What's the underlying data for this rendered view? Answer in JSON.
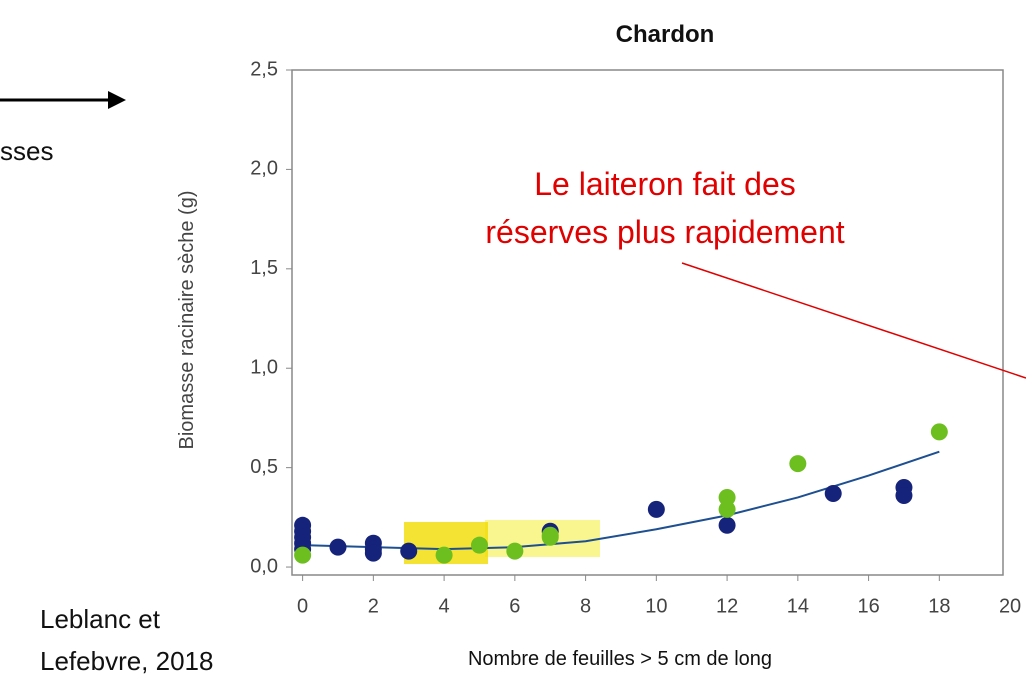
{
  "chart_data": {
    "type": "scatter",
    "title": "Chardon",
    "xlabel": "Nombre de feuilles > 5 cm de long",
    "ylabel": "Biomasse racinaire sèche (g)",
    "annotations": [
      "Le laiteron fait des",
      "réserves plus rapidement"
    ],
    "source": [
      "Leblanc et",
      "Lefebvre, 2018"
    ],
    "side_text": "sses",
    "xlim": [
      -0.3,
      19.8
    ],
    "ylim": [
      -0.04,
      2.5
    ],
    "xticks": [
      0,
      2,
      4,
      6,
      8,
      10,
      12,
      14,
      16,
      18,
      20
    ],
    "yticks": [
      {
        "value": 0,
        "label": "0,0"
      },
      {
        "value": 0.5,
        "label": "0,5"
      },
      {
        "value": 1,
        "label": "1,0"
      },
      {
        "value": 1.5,
        "label": "1,5"
      },
      {
        "value": 2,
        "label": "2,0"
      },
      {
        "value": 2.5,
        "label": "2,5"
      }
    ],
    "series": [
      {
        "color": "#16237a",
        "x": [
          0,
          0,
          0,
          0,
          0,
          1,
          2,
          2,
          2,
          3,
          7,
          10,
          12,
          15,
          17,
          17
        ],
        "values": [
          0.21,
          0.18,
          0.15,
          0.12,
          0.09,
          0.1,
          0.12,
          0.09,
          0.07,
          0.08,
          0.18,
          0.29,
          0.21,
          0.37,
          0.4,
          0.36
        ]
      },
      {
        "color": "#6cbf1f",
        "x": [
          0,
          4,
          5,
          6,
          7,
          7,
          12,
          12,
          14,
          18
        ],
        "values": [
          0.06,
          0.06,
          0.11,
          0.08,
          0.15,
          0.16,
          0.35,
          0.29,
          0.52,
          0.68
        ]
      }
    ],
    "fit": {
      "color": "#1d4f91",
      "x": [
        0,
        2,
        4,
        6,
        8,
        10,
        12,
        14,
        16,
        18
      ],
      "values": [
        0.11,
        0.1,
        0.09,
        0.1,
        0.13,
        0.19,
        0.26,
        0.35,
        0.46,
        0.58
      ]
    }
  }
}
